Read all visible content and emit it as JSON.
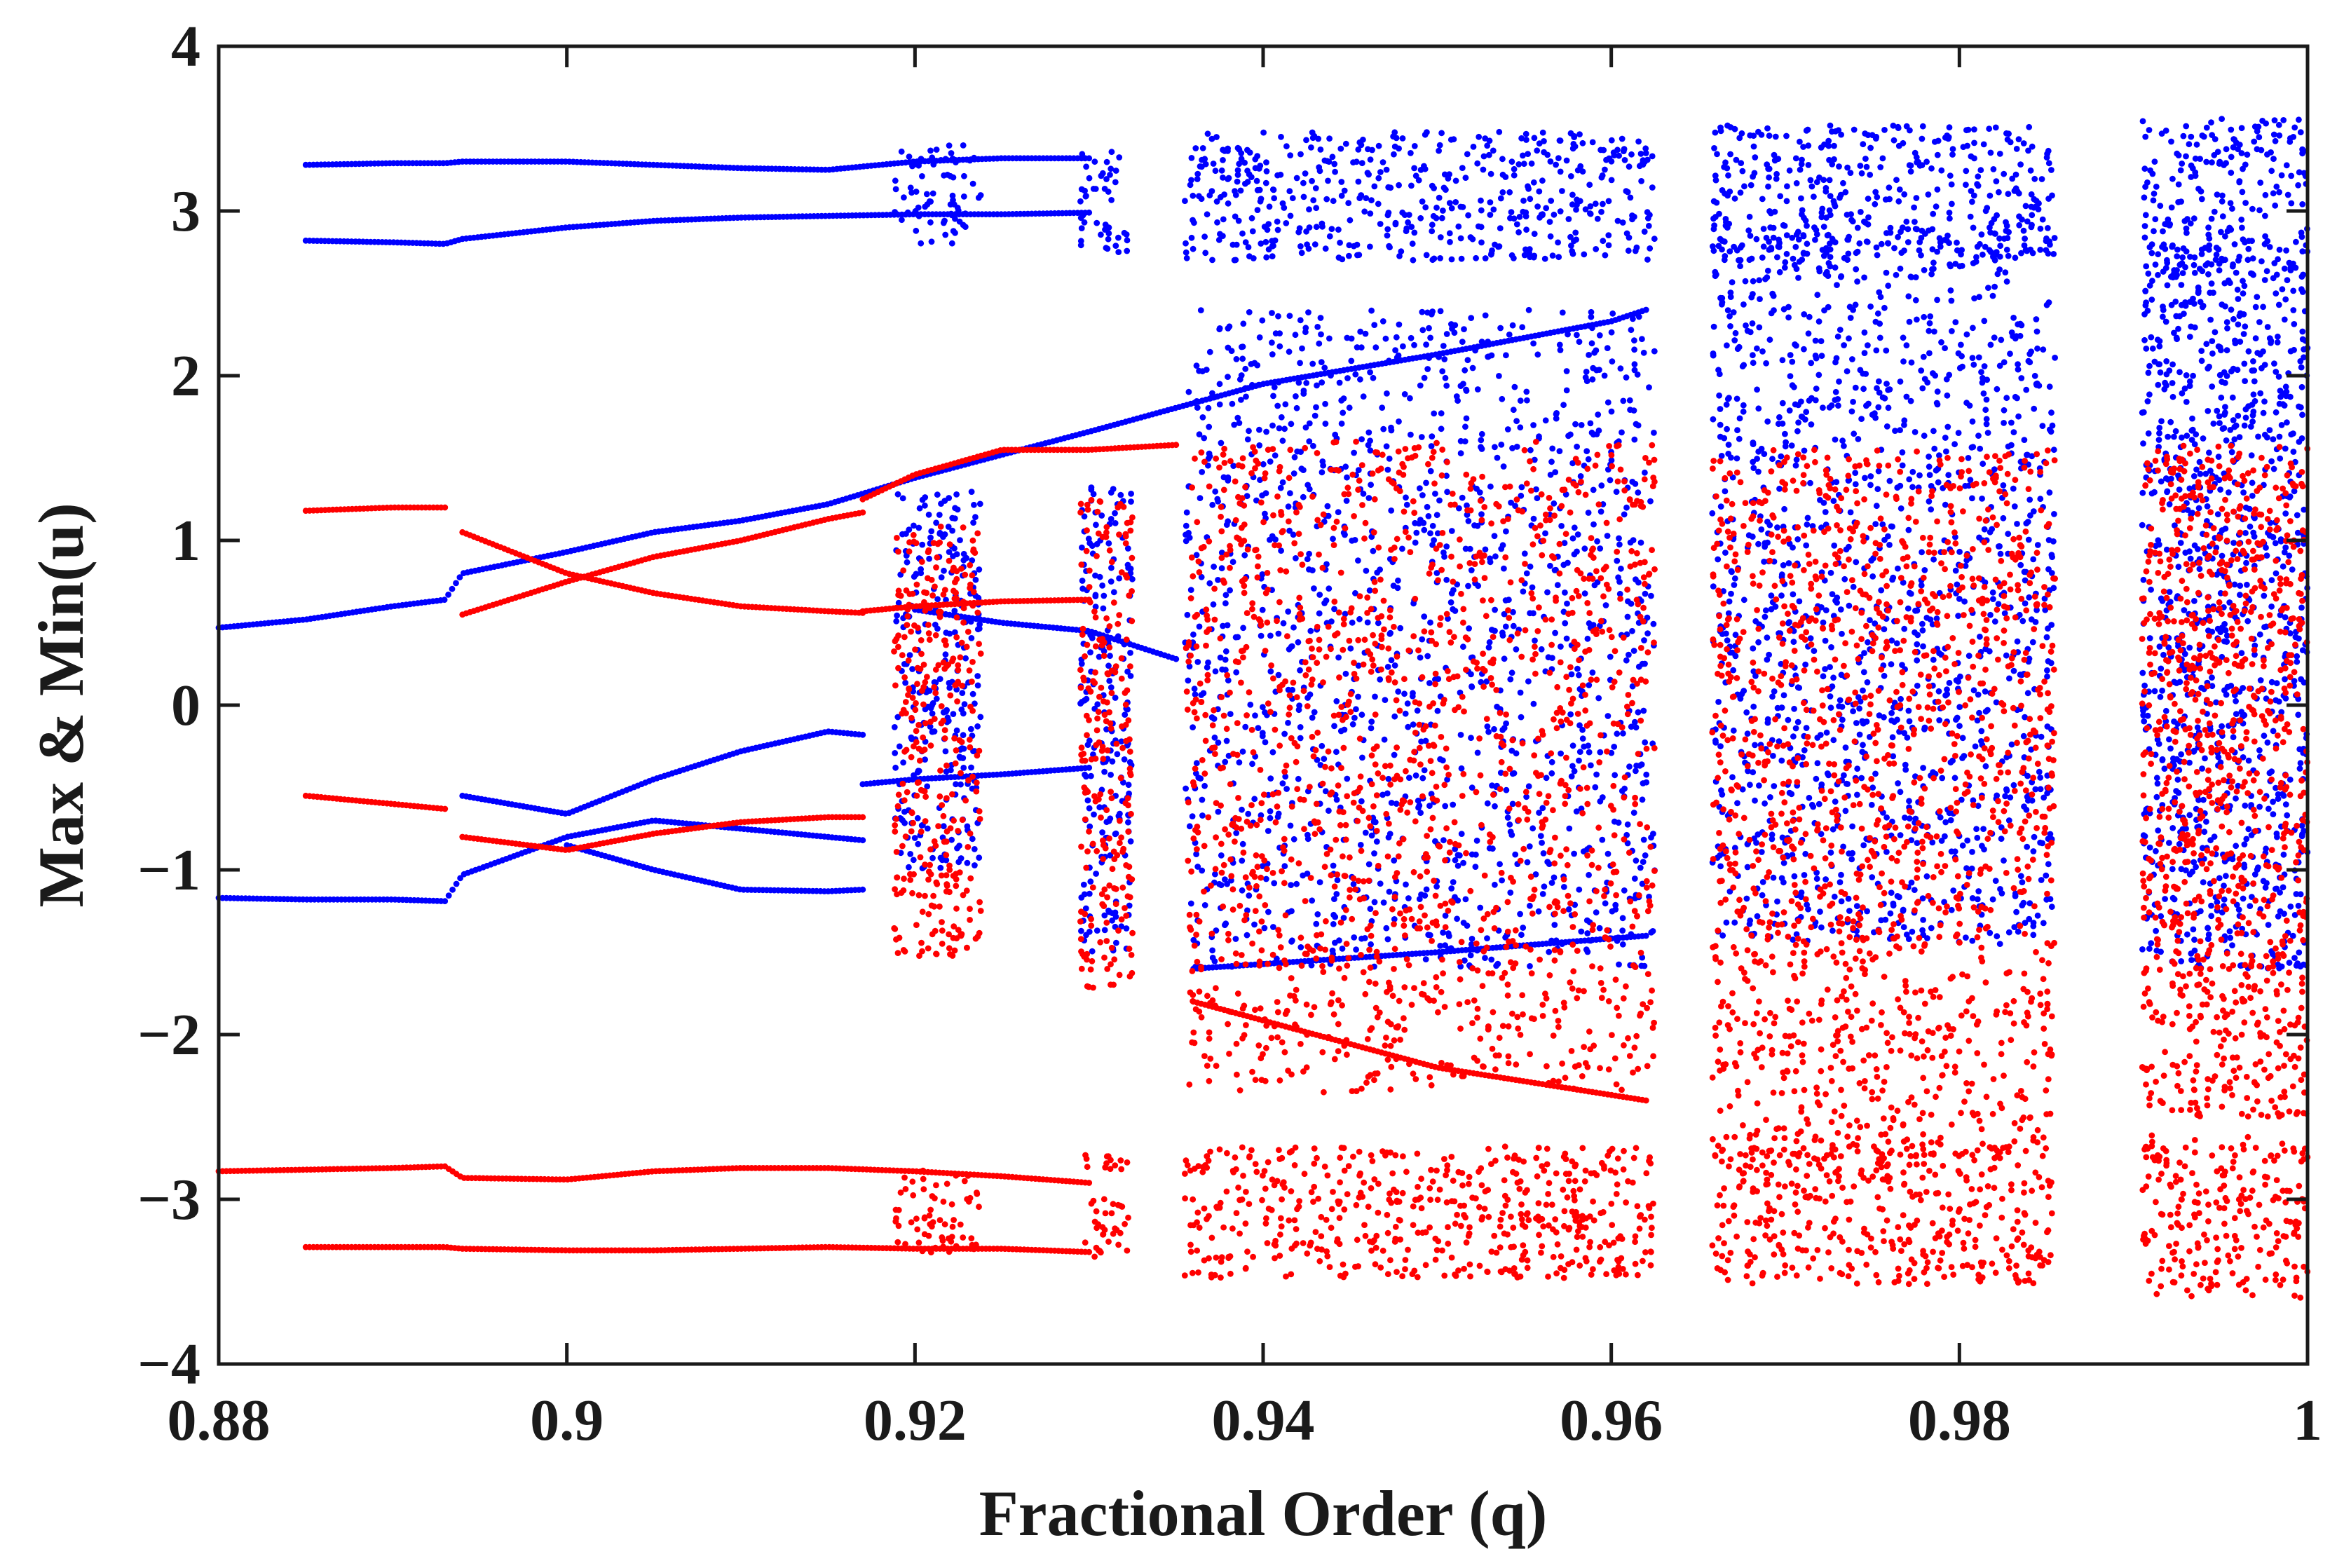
{
  "chart_data": {
    "type": "scatter",
    "xlabel": "Fractional Order (q)",
    "ylabel": "Max & Min(u)",
    "xlim": [
      0.88,
      1.0
    ],
    "ylim": [
      -4,
      4
    ],
    "xticks": [
      0.88,
      0.9,
      0.92,
      0.94,
      0.96,
      0.98,
      1.0
    ],
    "xtick_labels": [
      "0.88",
      "0.9",
      "0.92",
      "0.94",
      "0.96",
      "0.98",
      "1"
    ],
    "yticks": [
      -4,
      -3,
      -2,
      -1,
      0,
      1,
      2,
      3,
      4
    ],
    "ytick_labels": [
      "−4",
      "−3",
      "−2",
      "−1",
      "0",
      "1",
      "2",
      "3",
      "4"
    ],
    "grid": false,
    "legend": false,
    "series": [
      {
        "color": "#0000ff",
        "branches": [
          {
            "x": [
              0.885,
              0.89,
              0.893,
              0.894,
              0.9,
              0.905,
              0.91,
              0.915,
              0.92,
              0.925,
              0.93
            ],
            "y": [
              3.28,
              3.29,
              3.29,
              3.3,
              3.3,
              3.28,
              3.26,
              3.25,
              3.3,
              3.32,
              3.32
            ]
          },
          {
            "x": [
              0.885,
              0.89,
              0.893,
              0.894,
              0.9,
              0.905,
              0.91,
              0.915,
              0.92,
              0.925,
              0.93
            ],
            "y": [
              2.82,
              2.81,
              2.8,
              2.83,
              2.9,
              2.94,
              2.96,
              2.97,
              2.98,
              2.98,
              2.99
            ]
          },
          {
            "x": [
              0.88,
              0.885,
              0.89,
              0.893,
              0.894,
              0.9,
              0.905,
              0.91,
              0.915,
              0.92,
              0.925,
              0.93,
              0.94,
              0.95,
              0.96,
              0.962
            ],
            "y": [
              0.47,
              0.52,
              0.6,
              0.64,
              0.8,
              0.93,
              1.05,
              1.12,
              1.22,
              1.38,
              1.52,
              1.66,
              1.95,
              2.13,
              2.33,
              2.4
            ]
          },
          {
            "x": [
              0.88,
              0.885,
              0.89,
              0.893,
              0.894,
              0.9,
              0.905,
              0.91,
              0.915,
              0.917
            ],
            "y": [
              -1.17,
              -1.18,
              -1.18,
              -1.19,
              -1.03,
              -0.8,
              -0.7,
              -0.75,
              -0.8,
              -0.82
            ]
          },
          {
            "x": [
              0.894,
              0.9,
              0.905,
              0.91,
              0.915,
              0.917
            ],
            "y": [
              -0.55,
              -0.66,
              -0.45,
              -0.28,
              -0.16,
              -0.18
            ]
          },
          {
            "x": [
              0.9,
              0.905,
              0.91,
              0.915,
              0.917
            ],
            "y": [
              -0.85,
              -1.0,
              -1.12,
              -1.13,
              -1.12
            ]
          },
          {
            "x": [
              0.917,
              0.92,
              0.925,
              0.93
            ],
            "y": [
              -0.48,
              -0.45,
              -0.42,
              -0.38
            ]
          },
          {
            "x": [
              0.92,
              0.925,
              0.93,
              0.935
            ],
            "y": [
              0.58,
              0.5,
              0.45,
              0.28
            ]
          },
          {
            "x": [
              0.936,
              0.95,
              0.962
            ],
            "y": [
              -1.6,
              -1.5,
              -1.4
            ]
          }
        ],
        "chaotic_bands": [
          {
            "x": [
              0.9188,
              0.9238
            ],
            "y": [
              2.8,
              3.4
            ]
          },
          {
            "x": [
              0.9188,
              0.9238
            ],
            "y": [
              -1.0,
              1.3
            ]
          },
          {
            "x": [
              0.9295,
              0.9325
            ],
            "y": [
              2.75,
              3.4
            ]
          },
          {
            "x": [
              0.9295,
              0.9325
            ],
            "y": [
              -1.5,
              1.4
            ]
          },
          {
            "x": [
              0.9355,
              0.9625
            ],
            "y": [
              2.7,
              3.48
            ]
          },
          {
            "x": [
              0.9355,
              0.9625
            ],
            "y": [
              -1.6,
              2.4
            ]
          },
          {
            "x": [
              0.9658,
              0.9855
            ],
            "y": [
              2.7,
              3.52
            ]
          },
          {
            "x": [
              0.9658,
              0.9855
            ],
            "y": [
              -1.45,
              2.9
            ]
          },
          {
            "x": [
              0.9905,
              1.0
            ],
            "y": [
              2.6,
              3.56
            ]
          },
          {
            "x": [
              0.9905,
              1.0
            ],
            "y": [
              -1.6,
              2.8
            ]
          }
        ]
      },
      {
        "color": "#ff0000",
        "branches": [
          {
            "x": [
              0.885,
              0.89,
              0.893,
              0.894,
              0.9,
              0.905,
              0.91,
              0.915,
              0.92,
              0.925,
              0.93
            ],
            "y": [
              -3.29,
              -3.29,
              -3.29,
              -3.3,
              -3.31,
              -3.31,
              -3.3,
              -3.29,
              -3.3,
              -3.3,
              -3.32
            ]
          },
          {
            "x": [
              0.88,
              0.885,
              0.89,
              0.893,
              0.894,
              0.9,
              0.905,
              0.91,
              0.915,
              0.92,
              0.925,
              0.93
            ],
            "y": [
              -2.83,
              -2.82,
              -2.81,
              -2.8,
              -2.87,
              -2.88,
              -2.83,
              -2.81,
              -2.81,
              -2.83,
              -2.86,
              -2.9
            ]
          },
          {
            "x": [
              0.885,
              0.89,
              0.893
            ],
            "y": [
              1.18,
              1.2,
              1.2
            ]
          },
          {
            "x": [
              0.894,
              0.9,
              0.905,
              0.91,
              0.915,
              0.917
            ],
            "y": [
              1.05,
              0.8,
              0.68,
              0.6,
              0.57,
              0.56
            ]
          },
          {
            "x": [
              0.894,
              0.9,
              0.905,
              0.91,
              0.915,
              0.917
            ],
            "y": [
              0.55,
              0.75,
              0.9,
              1.0,
              1.13,
              1.17
            ]
          },
          {
            "x": [
              0.885,
              0.89,
              0.893
            ],
            "y": [
              -0.55,
              -0.6,
              -0.63
            ]
          },
          {
            "x": [
              0.894,
              0.9,
              0.905,
              0.91,
              0.915,
              0.917
            ],
            "y": [
              -0.8,
              -0.88,
              -0.78,
              -0.71,
              -0.68,
              -0.68
            ]
          },
          {
            "x": [
              0.917,
              0.92,
              0.925,
              0.93,
              0.935
            ],
            "y": [
              1.25,
              1.4,
              1.55,
              1.55,
              1.58
            ]
          },
          {
            "x": [
              0.917,
              0.92,
              0.925,
              0.93
            ],
            "y": [
              0.57,
              0.6,
              0.63,
              0.64
            ]
          },
          {
            "x": [
              0.936,
              0.95,
              0.962
            ],
            "y": [
              -1.8,
              -2.2,
              -2.4
            ]
          }
        ],
        "chaotic_bands": [
          {
            "x": [
              0.9188,
              0.9238
            ],
            "y": [
              -3.35,
              -2.82
            ]
          },
          {
            "x": [
              0.9188,
              0.9238
            ],
            "y": [
              -1.55,
              1.1
            ]
          },
          {
            "x": [
              0.9295,
              0.9325
            ],
            "y": [
              -3.35,
              -2.72
            ]
          },
          {
            "x": [
              0.9295,
              0.9325
            ],
            "y": [
              -1.72,
              1.25
            ]
          },
          {
            "x": [
              0.9355,
              0.9625
            ],
            "y": [
              -3.48,
              -2.68
            ]
          },
          {
            "x": [
              0.9355,
              0.9625
            ],
            "y": [
              -2.35,
              1.6
            ]
          },
          {
            "x": [
              0.9658,
              0.9855
            ],
            "y": [
              -3.52,
              -2.68
            ]
          },
          {
            "x": [
              0.9658,
              0.9855
            ],
            "y": [
              -2.75,
              1.55
            ]
          },
          {
            "x": [
              0.9905,
              1.0
            ],
            "y": [
              -3.6,
              -2.6
            ]
          },
          {
            "x": [
              0.9905,
              1.0
            ],
            "y": [
              -2.5,
              1.6
            ]
          }
        ]
      }
    ]
  }
}
